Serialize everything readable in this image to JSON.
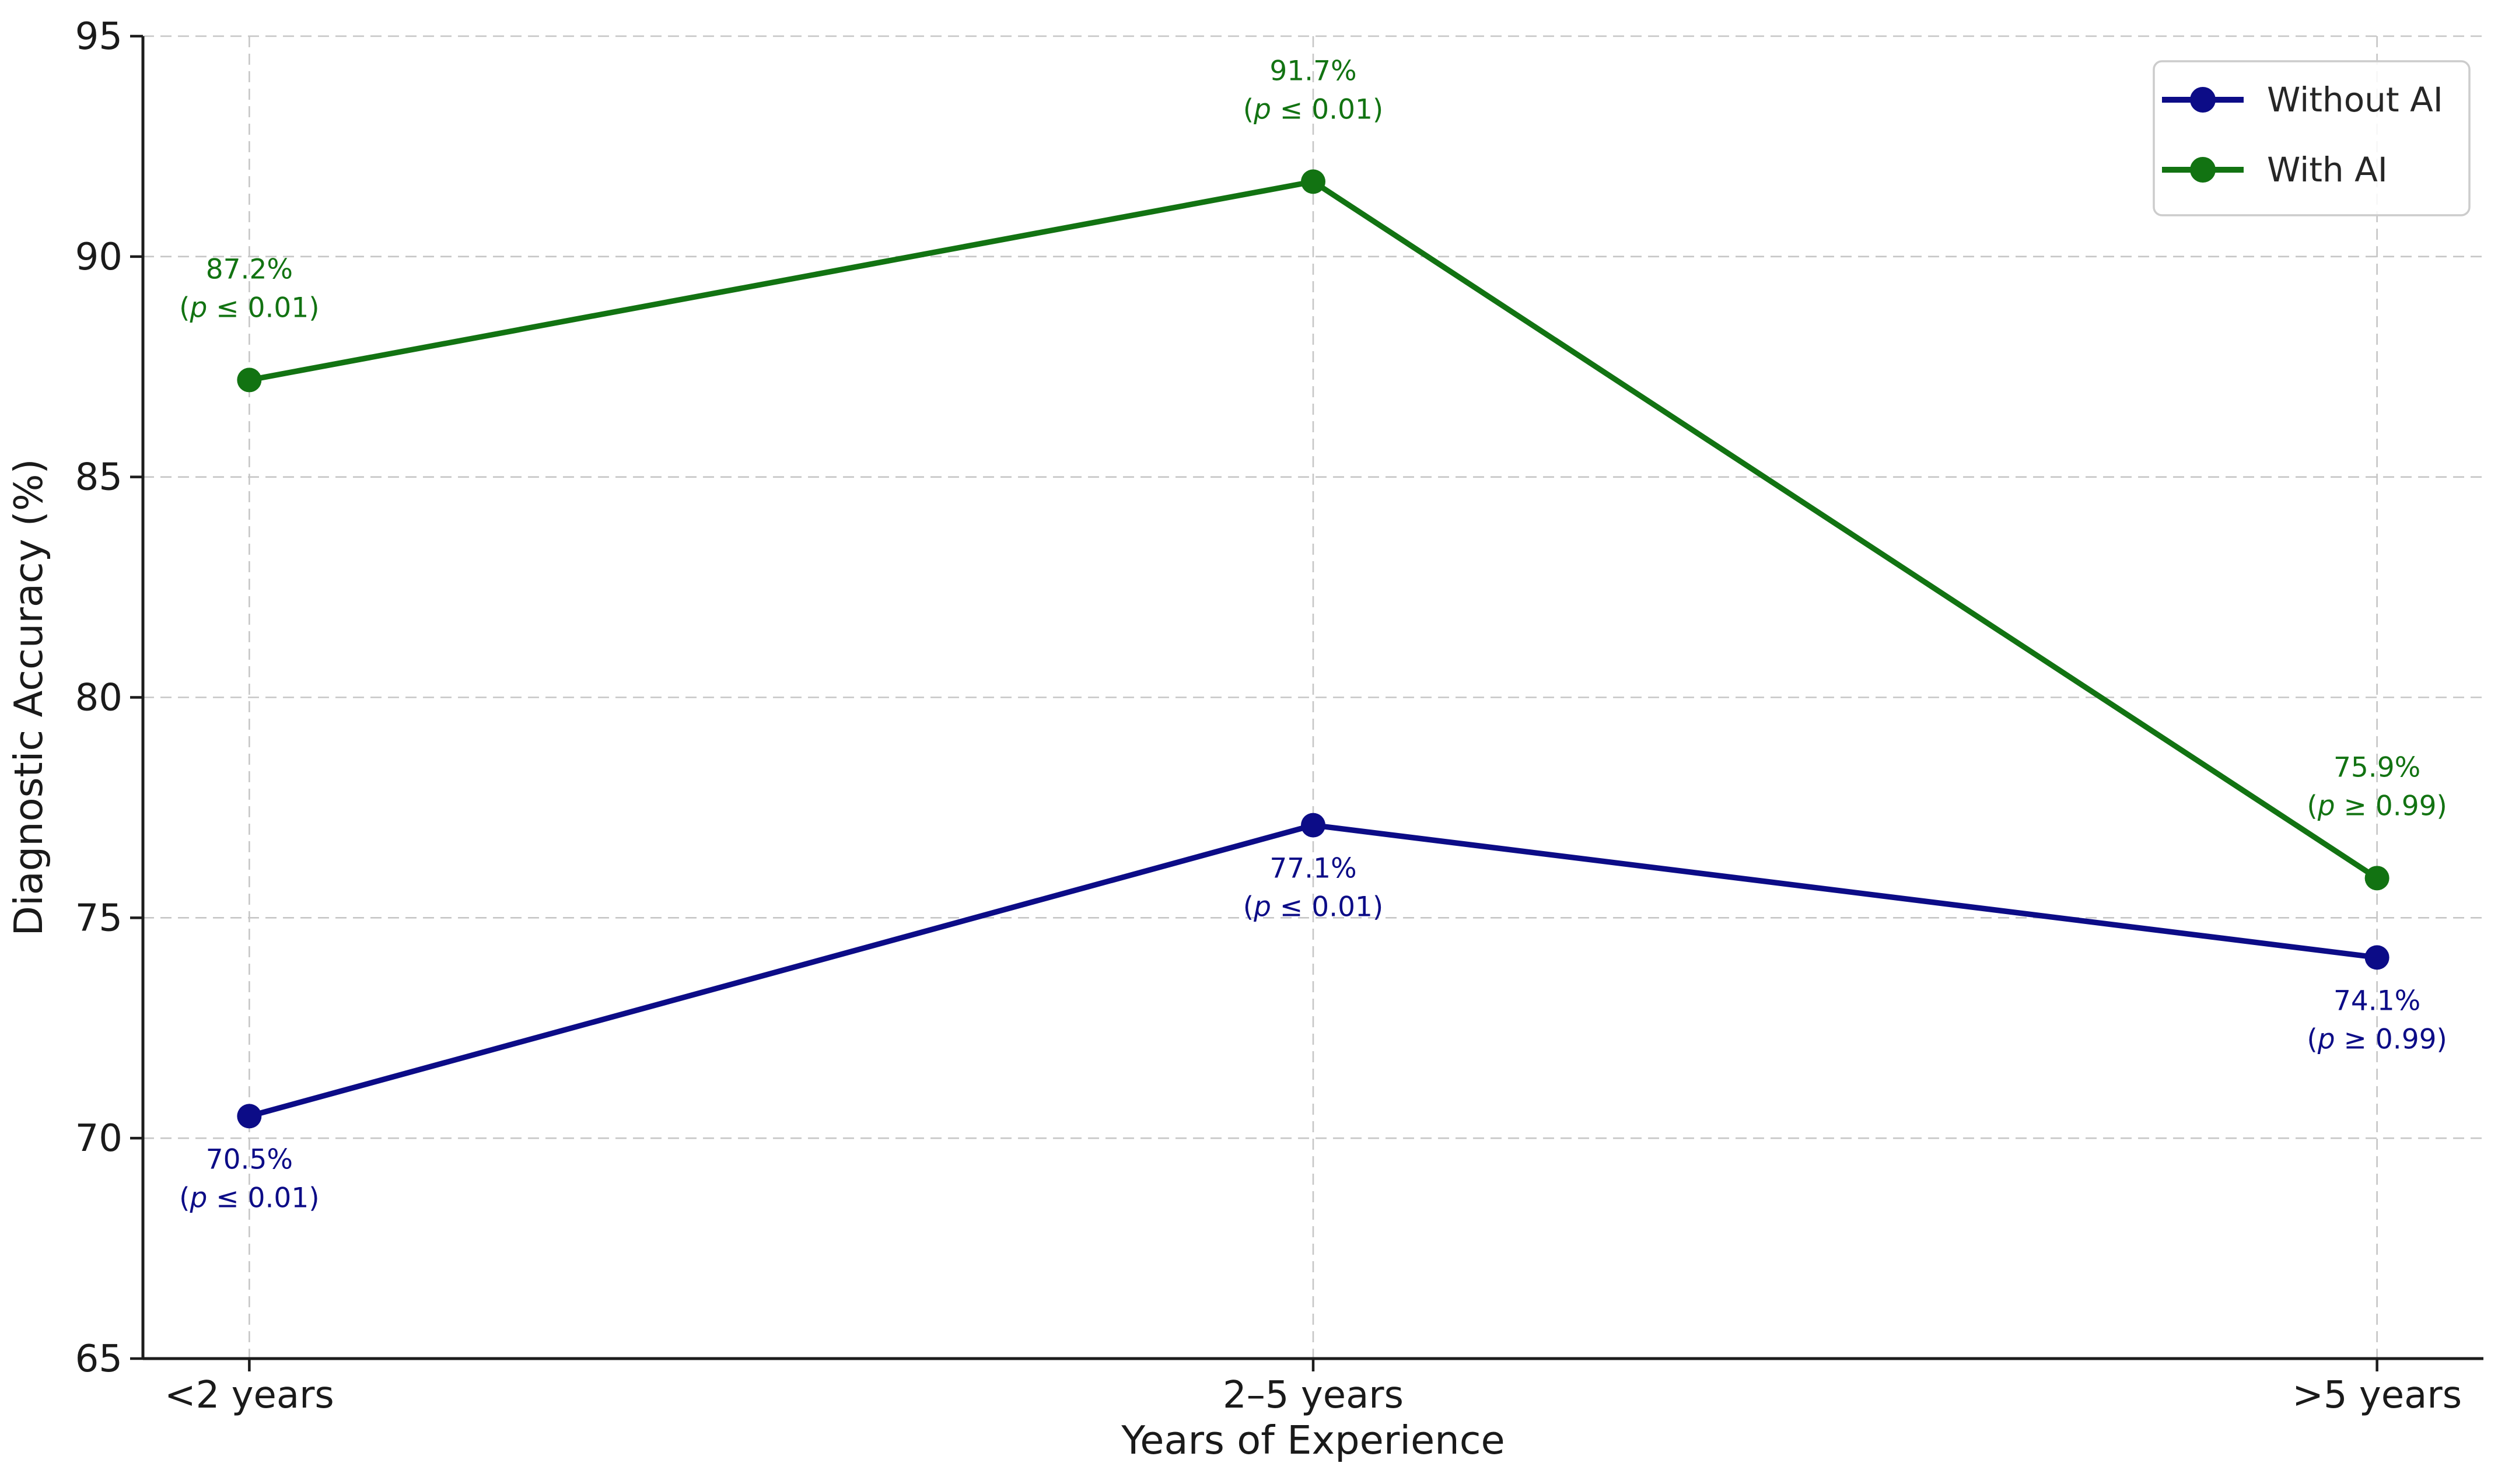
{
  "figure": {
    "background": "#ffffff",
    "text_color": "#1a1a1a",
    "grid_color": "#c6c6c6",
    "spine_color": "#1c1c1c",
    "legend": {
      "border_color": "#cccccc",
      "fill_opacity": 0.85,
      "entries": [
        {
          "label": "Without AI",
          "color": "#0c0c87"
        },
        {
          "label": "With AI",
          "color": "#127312"
        }
      ]
    }
  },
  "chart_data": {
    "type": "line",
    "title": "",
    "xlabel": "Years of Experience",
    "ylabel": "Diagnostic Accuracy (%)",
    "categories": [
      "<2 years",
      "2–5 years",
      ">5 years"
    ],
    "ylim": [
      65,
      95
    ],
    "yticks": [
      65,
      70,
      75,
      80,
      85,
      90,
      95
    ],
    "grid": true,
    "legend_position": "upper right",
    "series": [
      {
        "name": "Without AI",
        "color": "#0c0c87",
        "values": [
          70.5,
          77.1,
          74.1
        ],
        "annotations": [
          {
            "value_label": "70.5%",
            "p_label": "(p ≤ 0.01)",
            "placement": "below"
          },
          {
            "value_label": "77.1%",
            "p_label": "(p ≤ 0.01)",
            "placement": "below"
          },
          {
            "value_label": "74.1%",
            "p_label": "(p ≥ 0.99)",
            "placement": "below"
          }
        ]
      },
      {
        "name": "With AI",
        "color": "#127312",
        "values": [
          87.2,
          91.7,
          75.9
        ],
        "annotations": [
          {
            "value_label": "87.2%",
            "p_label": "(p ≤ 0.01)",
            "placement": "above"
          },
          {
            "value_label": "91.7%",
            "p_label": "(p ≤ 0.01)",
            "placement": "above"
          },
          {
            "value_label": "75.9%",
            "p_label": "(p ≥ 0.99)",
            "placement": "above"
          }
        ]
      }
    ]
  }
}
